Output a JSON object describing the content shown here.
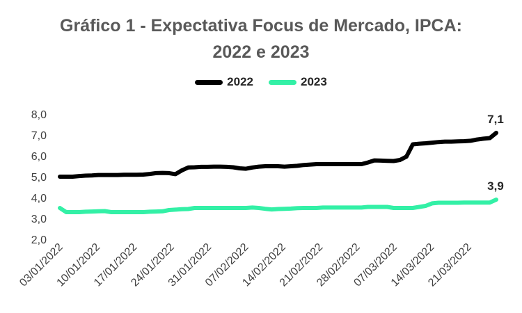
{
  "chart_data": {
    "type": "line",
    "title_line1": "Gráfico 1 - Expectativa Focus de Mercado, IPCA:",
    "title_line2": "2022 e 2023",
    "xlabel": "",
    "ylabel": "",
    "ylim": [
      2.0,
      8.0
    ],
    "yticks": [
      "2,0",
      "3,0",
      "4,0",
      "5,0",
      "6,0",
      "7,0",
      "8,0"
    ],
    "ytick_values": [
      2,
      3,
      4,
      5,
      6,
      7,
      8
    ],
    "x_tick_labels": [
      "03/01/2022",
      "10/01/2022",
      "17/01/2022",
      "24/01/2022",
      "31/01/2022",
      "07/02/2022",
      "14/02/2022",
      "21/02/2022",
      "28/02/2022",
      "07/03/2022",
      "14/03/2022",
      "21/03/2022"
    ],
    "grid": false,
    "legend_position": "top-center",
    "series": [
      {
        "name": "2022",
        "color": "#000000",
        "end_label": "7,1",
        "values": [
          5.0,
          5.0,
          5.0,
          5.03,
          5.05,
          5.06,
          5.08,
          5.08,
          5.08,
          5.08,
          5.09,
          5.09,
          5.09,
          5.1,
          5.13,
          5.17,
          5.18,
          5.17,
          5.12,
          5.3,
          5.44,
          5.45,
          5.47,
          5.47,
          5.48,
          5.48,
          5.47,
          5.45,
          5.4,
          5.38,
          5.44,
          5.48,
          5.5,
          5.5,
          5.5,
          5.48,
          5.5,
          5.52,
          5.56,
          5.58,
          5.6,
          5.6,
          5.6,
          5.6,
          5.6,
          5.6,
          5.6,
          5.6,
          5.68,
          5.78,
          5.77,
          5.76,
          5.75,
          5.8,
          5.96,
          6.55,
          6.58,
          6.6,
          6.63,
          6.66,
          6.68,
          6.68,
          6.69,
          6.7,
          6.72,
          6.78,
          6.82,
          6.85,
          7.1
        ]
      },
      {
        "name": "2023",
        "color": "#33f0a6",
        "end_label": "3,9",
        "values": [
          3.5,
          3.3,
          3.3,
          3.3,
          3.32,
          3.33,
          3.34,
          3.35,
          3.3,
          3.3,
          3.3,
          3.3,
          3.3,
          3.3,
          3.32,
          3.33,
          3.34,
          3.4,
          3.42,
          3.44,
          3.45,
          3.5,
          3.5,
          3.5,
          3.5,
          3.5,
          3.5,
          3.5,
          3.5,
          3.5,
          3.52,
          3.5,
          3.46,
          3.43,
          3.45,
          3.46,
          3.47,
          3.49,
          3.5,
          3.5,
          3.5,
          3.52,
          3.52,
          3.52,
          3.52,
          3.52,
          3.52,
          3.52,
          3.55,
          3.55,
          3.55,
          3.55,
          3.5,
          3.5,
          3.5,
          3.5,
          3.55,
          3.6,
          3.72,
          3.75,
          3.75,
          3.75,
          3.75,
          3.76,
          3.76,
          3.76,
          3.76,
          3.76,
          3.9
        ]
      }
    ]
  }
}
